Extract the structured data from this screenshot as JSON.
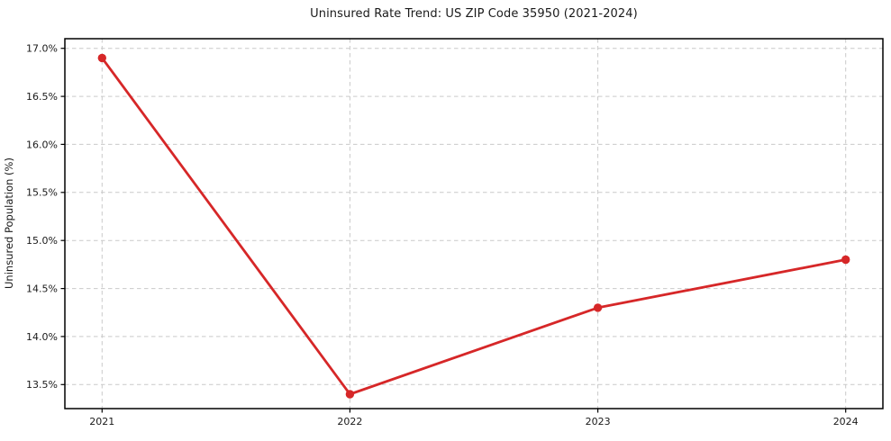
{
  "chart_data": {
    "type": "line",
    "title": "Uninsured Rate Trend: US ZIP Code 35950 (2021-2024)",
    "xlabel": "",
    "ylabel": "Uninsured Population (%)",
    "x": [
      2021,
      2022,
      2023,
      2024
    ],
    "xtick_labels": [
      "2021",
      "2022",
      "2023",
      "2024"
    ],
    "values": [
      16.9,
      13.4,
      14.3,
      14.8
    ],
    "yticks": [
      13.5,
      14.0,
      14.5,
      15.0,
      15.5,
      16.0,
      16.5,
      17.0
    ],
    "ytick_labels": [
      "13.5%",
      "14.0%",
      "14.5%",
      "15.0%",
      "15.5%",
      "16.0%",
      "16.5%",
      "17.0%"
    ],
    "xlim": [
      2020.85,
      2024.15
    ],
    "ylim": [
      13.25,
      17.1
    ],
    "grid": true,
    "grid_style": "dashed",
    "legend": "none",
    "colors": {
      "line": "#d62728",
      "marker": "#d62728",
      "grid": "#c9c9c9",
      "axis": "#000000",
      "text": "#1a1a1a",
      "background": "#ffffff"
    }
  }
}
